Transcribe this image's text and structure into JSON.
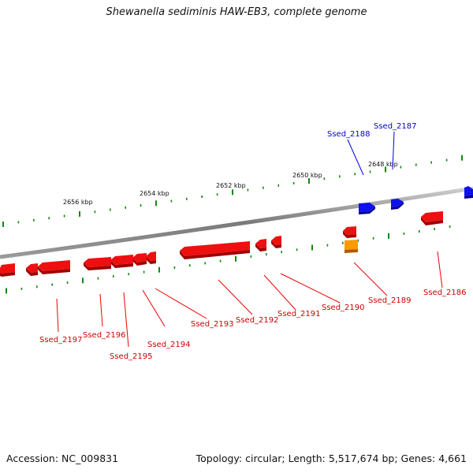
{
  "title": "Shewanella sediminis HAW-EB3, complete genome",
  "footer": {
    "accession": "Accession: NC_009831",
    "summary": "Topology: circular; Length: 5,517,674 bp; Genes: 4,661"
  },
  "colors": {
    "forward_gene": "#0000ee",
    "reverse_gene": "#ee0000",
    "highlight_gene": "#ff9900",
    "tick": "#118811",
    "backbone": "#808080"
  },
  "kbp_labels": [
    "2656 kbp",
    "2654 kbp",
    "2652 kbp",
    "2650 kbp",
    "2648 kbp"
  ],
  "genes": [
    {
      "label": "Ssed_2188",
      "strand": "+"
    },
    {
      "label": "Ssed_2187",
      "strand": "+"
    },
    {
      "label": "Ssed_2186",
      "strand": "-"
    },
    {
      "label": "Ssed_2189",
      "strand": "-"
    },
    {
      "label": "Ssed_2190",
      "strand": "-"
    },
    {
      "label": "Ssed_2191",
      "strand": "-"
    },
    {
      "label": "Ssed_2192",
      "strand": "-"
    },
    {
      "label": "Ssed_2193",
      "strand": "-"
    },
    {
      "label": "Ssed_2194",
      "strand": "-"
    },
    {
      "label": "Ssed_2195",
      "strand": "-"
    },
    {
      "label": "Ssed_2196",
      "strand": "-"
    },
    {
      "label": "Ssed_2197",
      "strand": "-"
    }
  ]
}
